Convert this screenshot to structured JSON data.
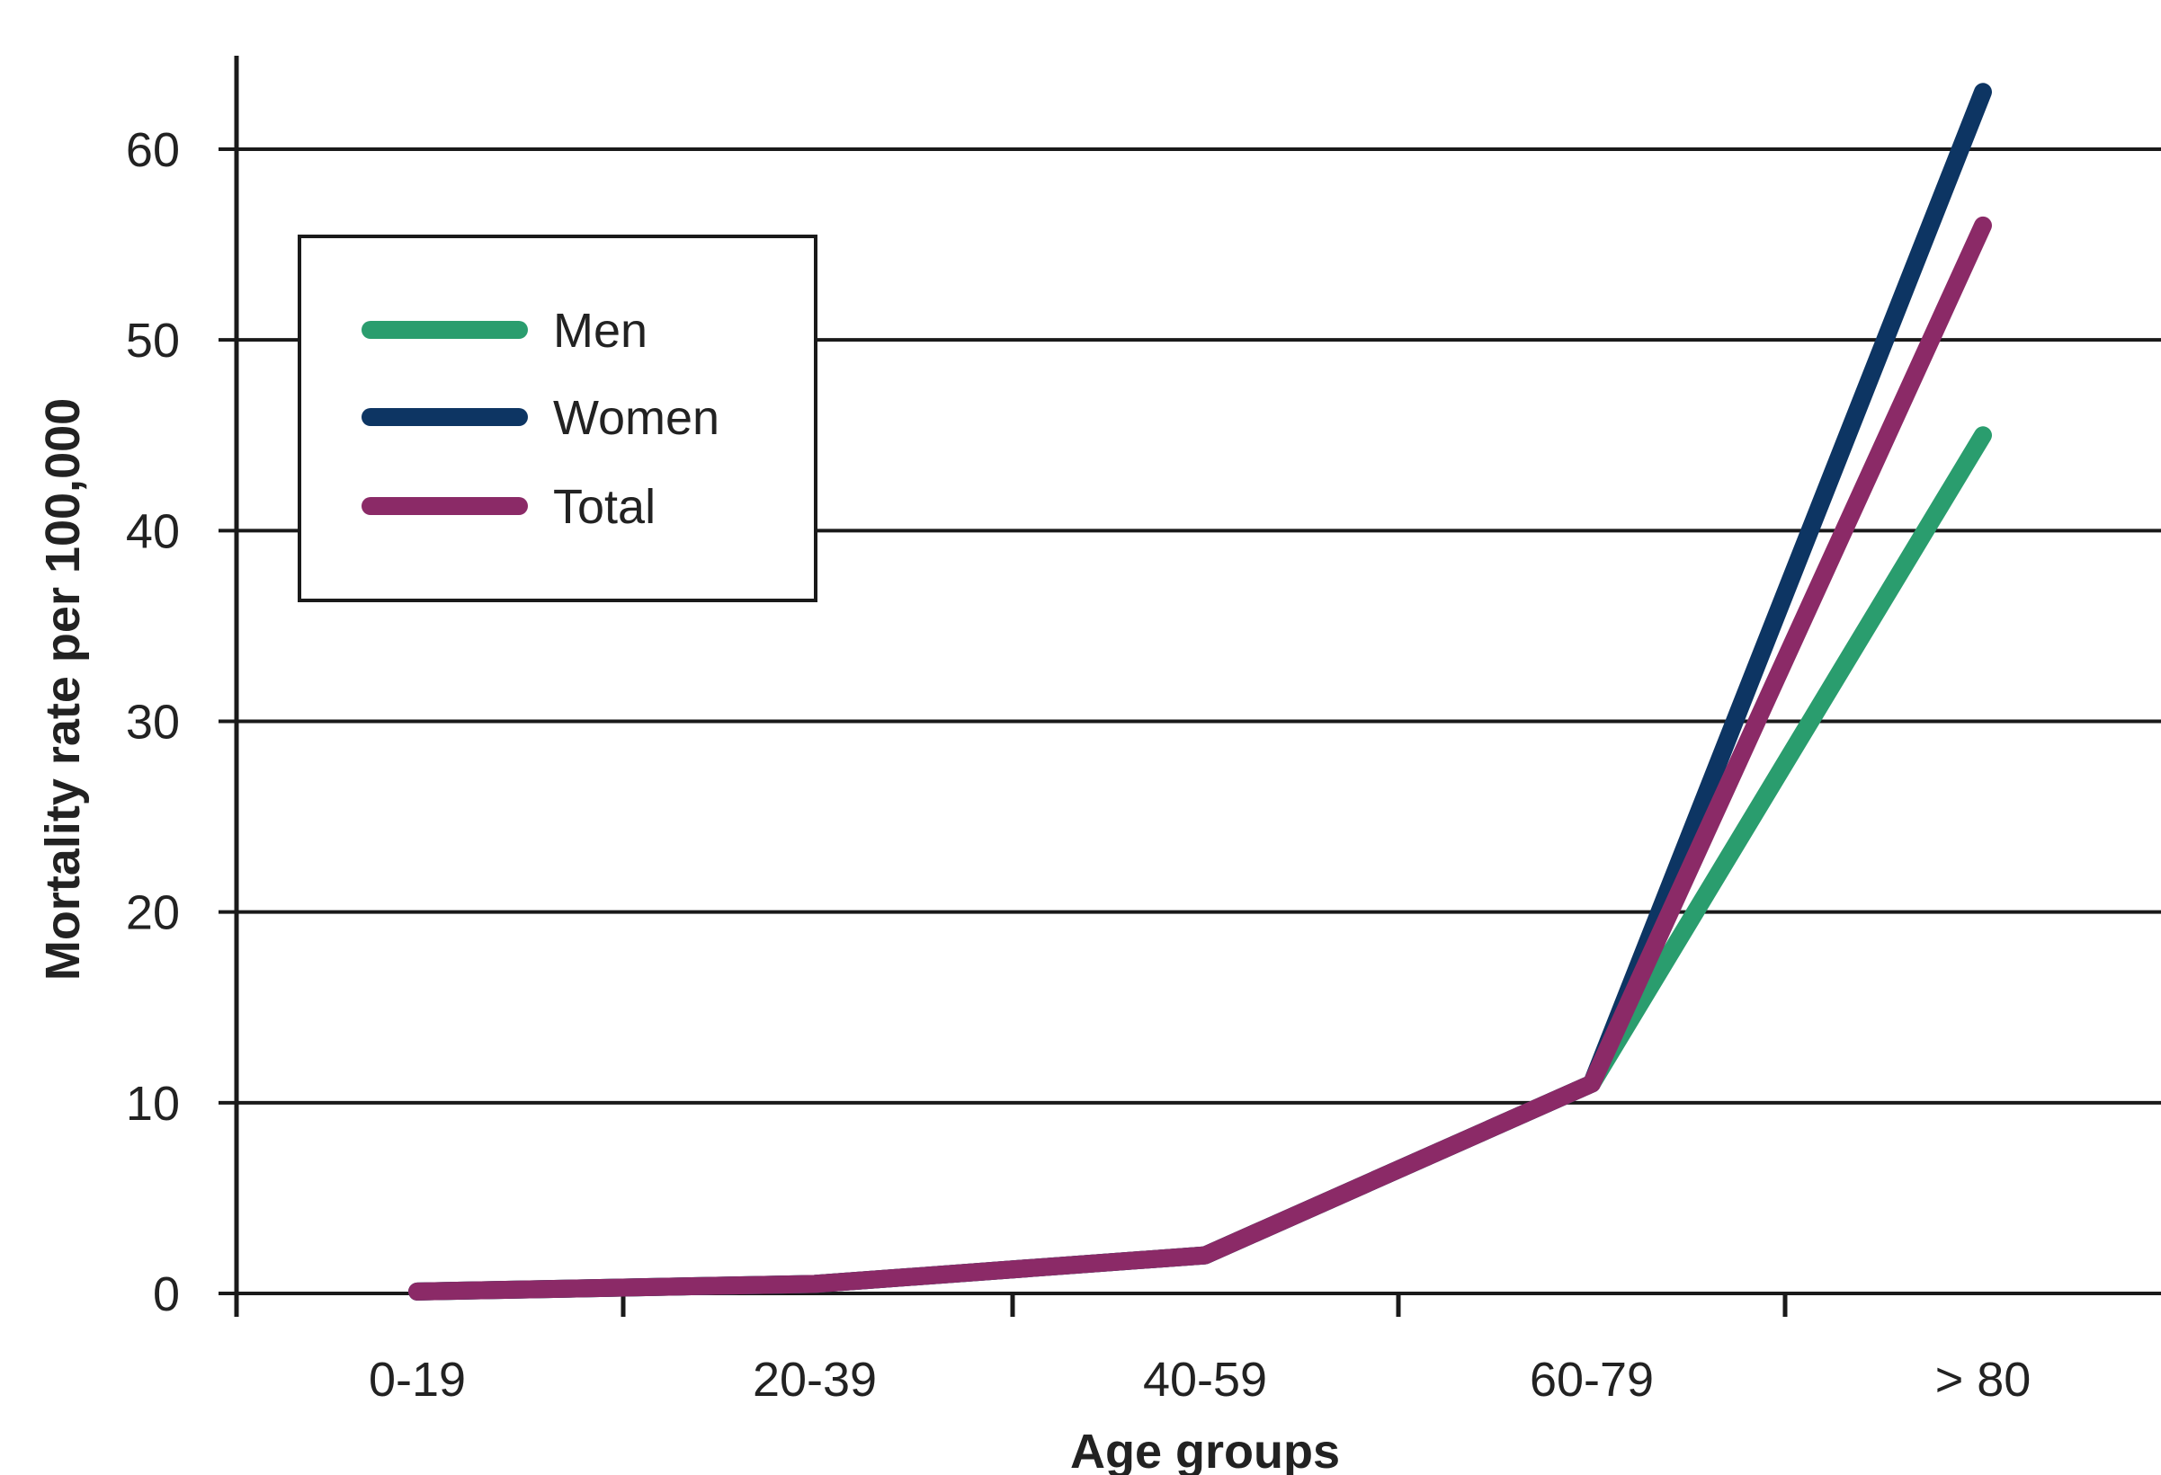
{
  "chart_data": {
    "type": "line",
    "xlabel": "Age groups",
    "ylabel": "Mortality rate per 100,000",
    "ylim": [
      0,
      60
    ],
    "yticks": [
      0,
      10,
      20,
      30,
      40,
      50,
      60
    ],
    "categories": [
      "0-19",
      "20-39",
      "40-59",
      "60-79",
      "> 80"
    ],
    "grid": "horizontal",
    "legend_position": "top-left",
    "series": [
      {
        "name": "Men",
        "color": "#2a9d6e",
        "values": [
          0.1,
          0.5,
          2,
          11,
          45
        ]
      },
      {
        "name": "Women",
        "color": "#0d3563",
        "values": [
          0.1,
          0.5,
          2,
          11,
          63
        ]
      },
      {
        "name": "Total",
        "color": "#8b2a67",
        "values": [
          0.1,
          0.5,
          2,
          11,
          56
        ]
      }
    ]
  }
}
